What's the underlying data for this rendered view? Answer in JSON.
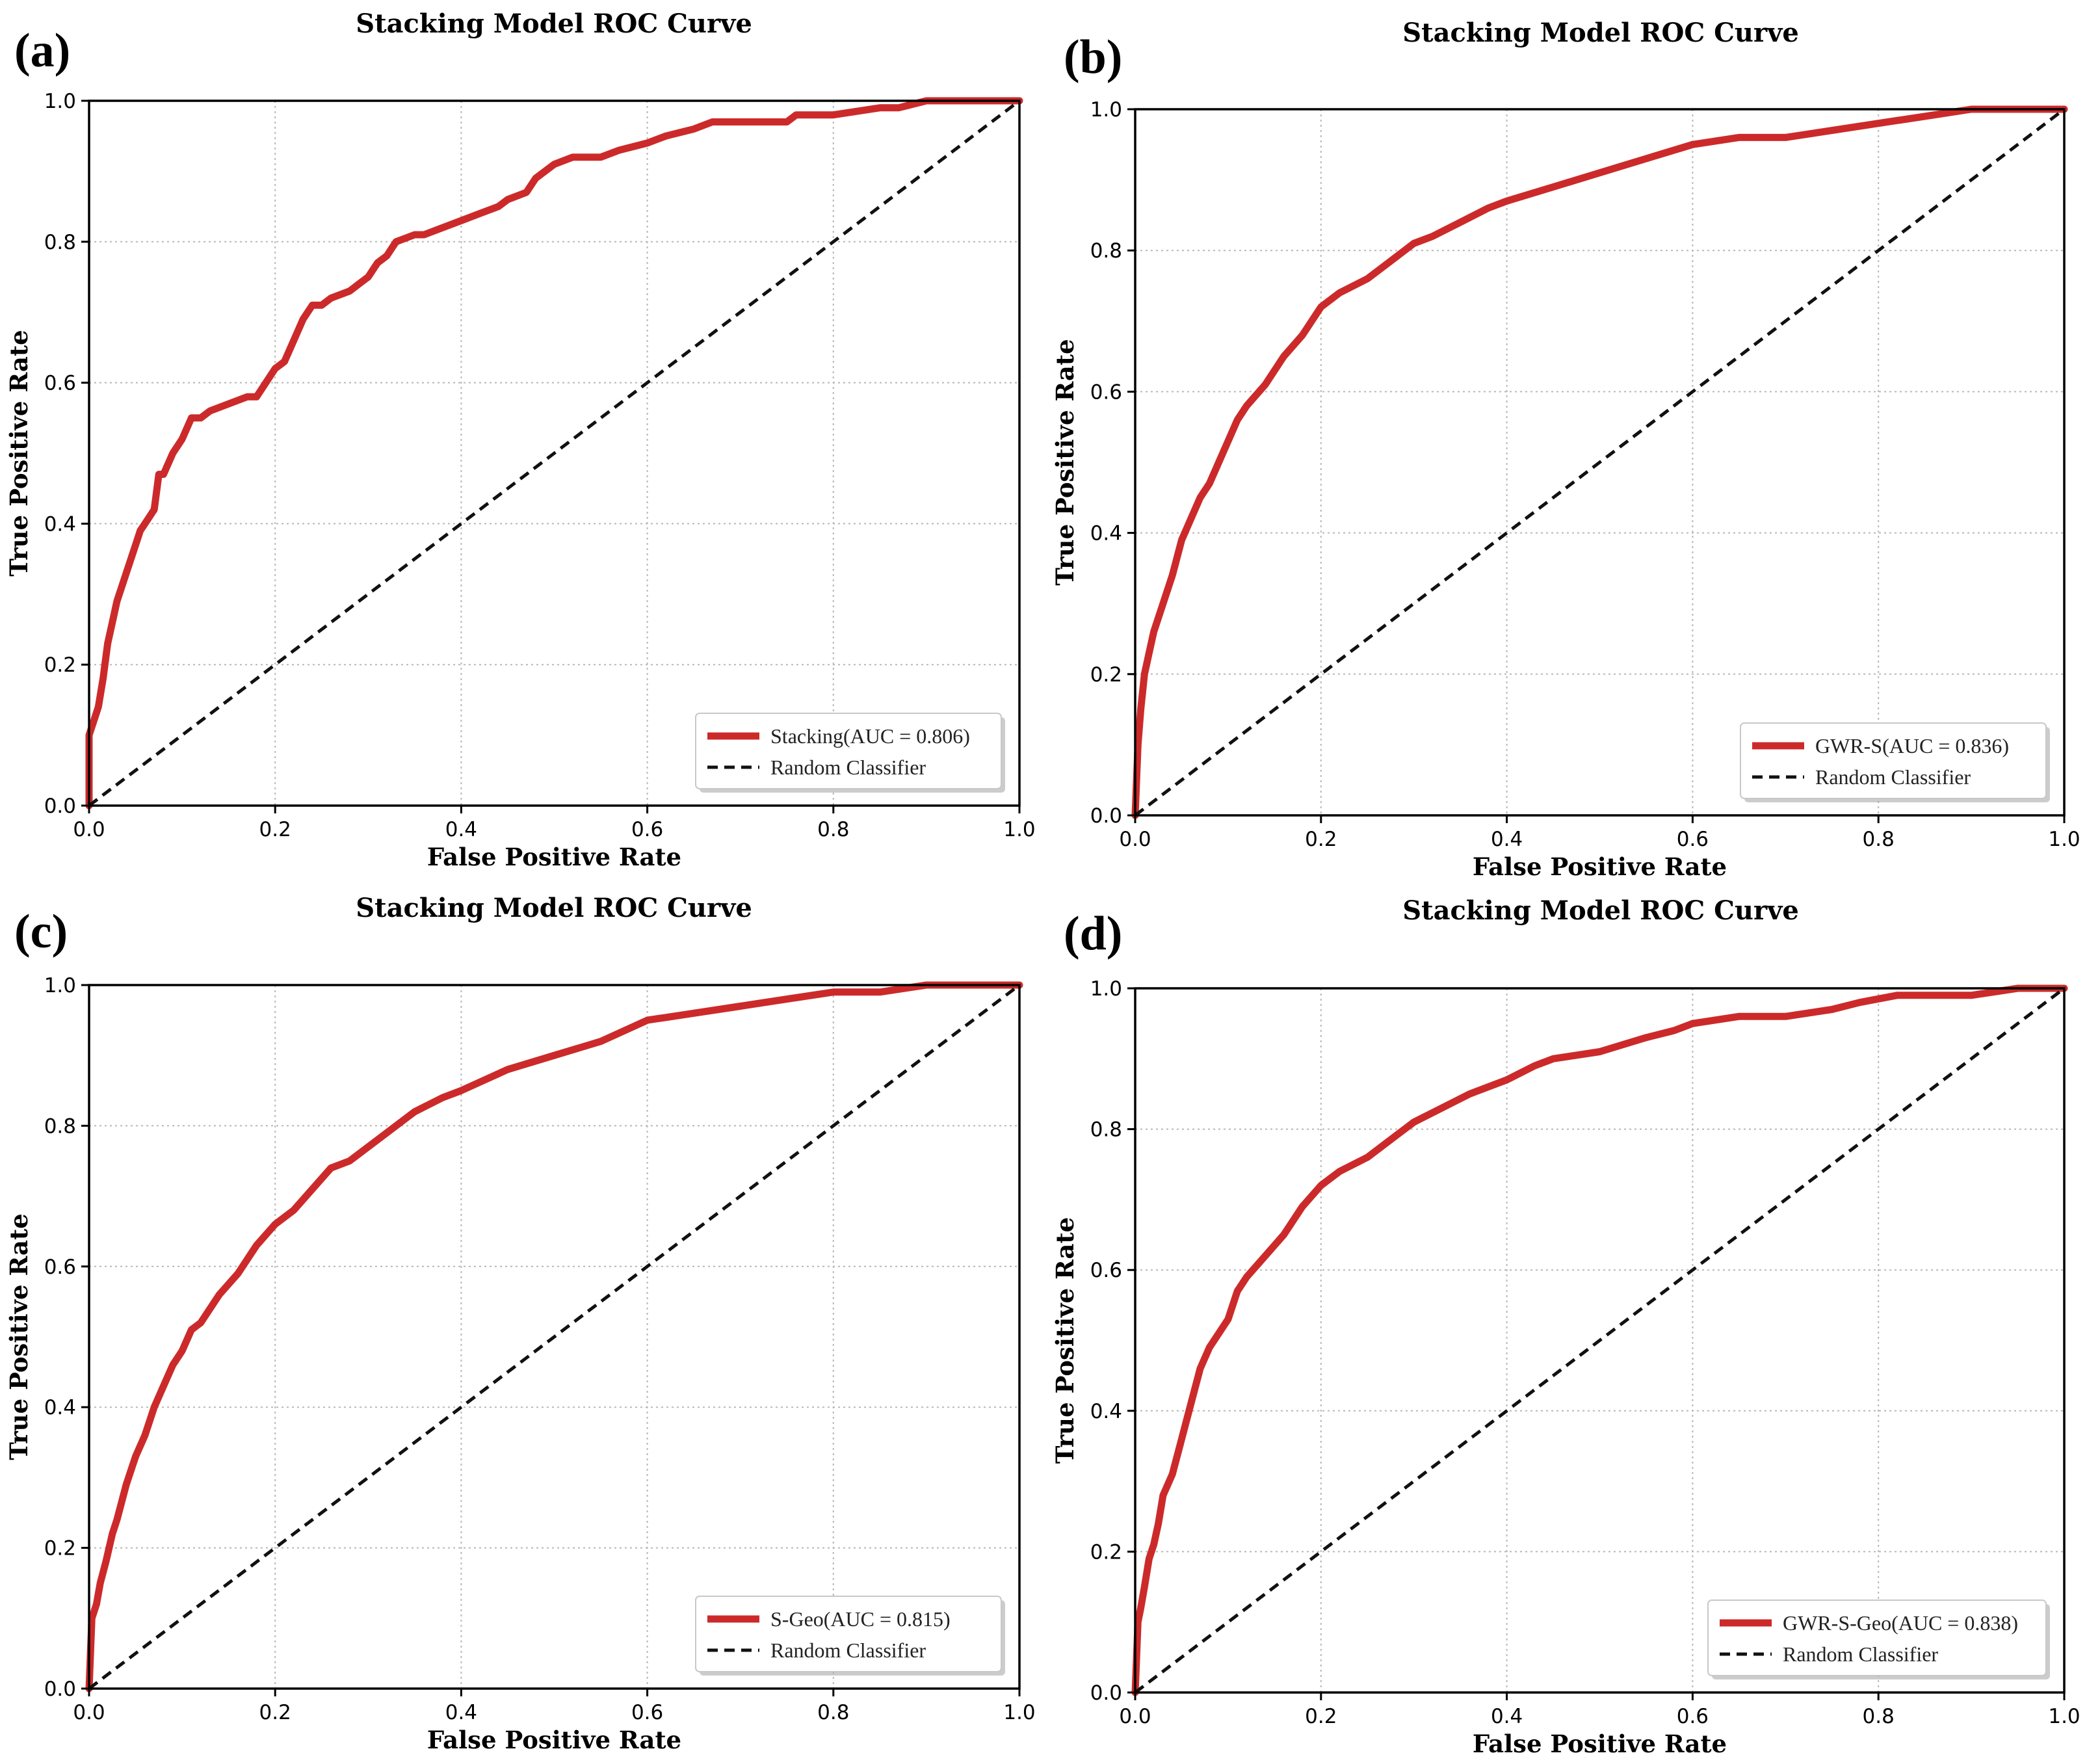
{
  "chart_data": [
    {
      "panel_label": "(a)",
      "type": "line",
      "title": "Stacking Model ROC Curve",
      "xlabel": "False Positive Rate",
      "ylabel": "True Positive Rate",
      "xlim": [
        0,
        1
      ],
      "ylim": [
        0,
        1
      ],
      "grid": true,
      "xticks": [
        "0.0",
        "0.2",
        "0.4",
        "0.6",
        "0.8",
        "1.0"
      ],
      "yticks": [
        "0.0",
        "0.2",
        "0.4",
        "0.6",
        "0.8",
        "1.0"
      ],
      "legend_position": "bottom-right",
      "series": [
        {
          "name": "Stacking(AUC = 0.806)",
          "color": "#cc2a2a",
          "style": "solid",
          "x": [
            0,
            0,
            0.005,
            0.01,
            0.015,
            0.02,
            0.025,
            0.03,
            0.04,
            0.05,
            0.055,
            0.06,
            0.07,
            0.075,
            0.08,
            0.09,
            0.1,
            0.11,
            0.12,
            0.13,
            0.15,
            0.17,
            0.18,
            0.19,
            0.2,
            0.21,
            0.22,
            0.23,
            0.24,
            0.25,
            0.26,
            0.28,
            0.29,
            0.3,
            0.31,
            0.32,
            0.33,
            0.35,
            0.36,
            0.38,
            0.4,
            0.42,
            0.44,
            0.45,
            0.47,
            0.48,
            0.5,
            0.52,
            0.55,
            0.57,
            0.6,
            0.62,
            0.65,
            0.67,
            0.7,
            0.75,
            0.76,
            0.8,
            0.85,
            0.87,
            0.9,
            0.95,
            1.0
          ],
          "y": [
            0,
            0.1,
            0.12,
            0.14,
            0.18,
            0.23,
            0.26,
            0.29,
            0.33,
            0.37,
            0.39,
            0.4,
            0.42,
            0.47,
            0.47,
            0.5,
            0.52,
            0.55,
            0.55,
            0.56,
            0.57,
            0.58,
            0.58,
            0.6,
            0.62,
            0.63,
            0.66,
            0.69,
            0.71,
            0.71,
            0.72,
            0.73,
            0.74,
            0.75,
            0.77,
            0.78,
            0.8,
            0.81,
            0.81,
            0.82,
            0.83,
            0.84,
            0.85,
            0.86,
            0.87,
            0.89,
            0.91,
            0.92,
            0.92,
            0.93,
            0.94,
            0.95,
            0.96,
            0.97,
            0.97,
            0.97,
            0.98,
            0.98,
            0.99,
            0.99,
            1.0,
            1.0,
            1.0
          ]
        },
        {
          "name": "Random Classifier",
          "color": "#111111",
          "style": "dashed",
          "x": [
            0,
            1
          ],
          "y": [
            0,
            1
          ]
        }
      ]
    },
    {
      "panel_label": "(b)",
      "type": "line",
      "title": "Stacking Model ROC Curve",
      "xlabel": "False Positive Rate",
      "ylabel": "True Positive Rate",
      "xlim": [
        0,
        1
      ],
      "ylim": [
        0,
        1
      ],
      "grid": true,
      "xticks": [
        "0.0",
        "0.2",
        "0.4",
        "0.6",
        "0.8",
        "1.0"
      ],
      "yticks": [
        "0.0",
        "0.2",
        "0.4",
        "0.6",
        "0.8",
        "1.0"
      ],
      "legend_position": "bottom-right",
      "series": [
        {
          "name": "GWR-S(AUC = 0.836)",
          "color": "#cc2a2a",
          "style": "solid",
          "x": [
            0,
            0.003,
            0.006,
            0.01,
            0.015,
            0.02,
            0.03,
            0.04,
            0.05,
            0.06,
            0.07,
            0.08,
            0.09,
            0.1,
            0.11,
            0.12,
            0.14,
            0.16,
            0.18,
            0.2,
            0.22,
            0.25,
            0.28,
            0.3,
            0.32,
            0.35,
            0.38,
            0.4,
            0.45,
            0.5,
            0.55,
            0.6,
            0.65,
            0.7,
            0.75,
            0.8,
            0.85,
            0.9,
            0.95,
            1.0
          ],
          "y": [
            0,
            0.1,
            0.15,
            0.2,
            0.23,
            0.26,
            0.3,
            0.34,
            0.39,
            0.42,
            0.45,
            0.47,
            0.5,
            0.53,
            0.56,
            0.58,
            0.61,
            0.65,
            0.68,
            0.72,
            0.74,
            0.76,
            0.79,
            0.81,
            0.82,
            0.84,
            0.86,
            0.87,
            0.89,
            0.91,
            0.93,
            0.95,
            0.96,
            0.96,
            0.97,
            0.98,
            0.99,
            1.0,
            1.0,
            1.0
          ]
        },
        {
          "name": "Random Classifier",
          "color": "#111111",
          "style": "dashed",
          "x": [
            0,
            1
          ],
          "y": [
            0,
            1
          ]
        }
      ]
    },
    {
      "panel_label": "(c)",
      "type": "line",
      "title": "Stacking Model ROC Curve",
      "xlabel": "False Positive Rate",
      "ylabel": "True Positive Rate",
      "xlim": [
        0,
        1
      ],
      "ylim": [
        0,
        1
      ],
      "grid": true,
      "xticks": [
        "0.0",
        "0.2",
        "0.4",
        "0.6",
        "0.8",
        "1.0"
      ],
      "yticks": [
        "0.0",
        "0.2",
        "0.4",
        "0.6",
        "0.8",
        "1.0"
      ],
      "legend_position": "bottom-right",
      "series": [
        {
          "name": "S-Geo(AUC = 0.815)",
          "color": "#cc2a2a",
          "style": "solid",
          "x": [
            0,
            0.003,
            0.008,
            0.012,
            0.018,
            0.025,
            0.03,
            0.04,
            0.05,
            0.06,
            0.07,
            0.08,
            0.09,
            0.1,
            0.11,
            0.12,
            0.14,
            0.16,
            0.18,
            0.2,
            0.22,
            0.24,
            0.26,
            0.28,
            0.3,
            0.32,
            0.35,
            0.38,
            0.4,
            0.45,
            0.5,
            0.55,
            0.6,
            0.65,
            0.7,
            0.75,
            0.8,
            0.85,
            0.9,
            0.95,
            1.0
          ],
          "y": [
            0,
            0.1,
            0.12,
            0.15,
            0.18,
            0.22,
            0.24,
            0.29,
            0.33,
            0.36,
            0.4,
            0.43,
            0.46,
            0.48,
            0.51,
            0.52,
            0.56,
            0.59,
            0.63,
            0.66,
            0.68,
            0.71,
            0.74,
            0.75,
            0.77,
            0.79,
            0.82,
            0.84,
            0.85,
            0.88,
            0.9,
            0.92,
            0.95,
            0.96,
            0.97,
            0.98,
            0.99,
            0.99,
            1.0,
            1.0,
            1.0
          ]
        },
        {
          "name": "Random Classifier",
          "color": "#111111",
          "style": "dashed",
          "x": [
            0,
            1
          ],
          "y": [
            0,
            1
          ]
        }
      ]
    },
    {
      "panel_label": "(d)",
      "type": "line",
      "title": "Stacking Model ROC Curve",
      "xlabel": "False Positive Rate",
      "ylabel": "True Positive Rate",
      "xlim": [
        0,
        1
      ],
      "ylim": [
        0,
        1
      ],
      "grid": true,
      "xticks": [
        "0.0",
        "0.2",
        "0.4",
        "0.6",
        "0.8",
        "1.0"
      ],
      "yticks": [
        "0.0",
        "0.2",
        "0.4",
        "0.6",
        "0.8",
        "1.0"
      ],
      "legend_position": "bottom-right",
      "series": [
        {
          "name": "GWR-S-Geo(AUC = 0.838)",
          "color": "#cc2a2a",
          "style": "solid",
          "x": [
            0,
            0.003,
            0.006,
            0.01,
            0.015,
            0.02,
            0.025,
            0.03,
            0.04,
            0.05,
            0.06,
            0.07,
            0.08,
            0.09,
            0.1,
            0.11,
            0.12,
            0.14,
            0.16,
            0.18,
            0.2,
            0.22,
            0.25,
            0.28,
            0.3,
            0.33,
            0.36,
            0.38,
            0.4,
            0.43,
            0.45,
            0.5,
            0.55,
            0.58,
            0.6,
            0.65,
            0.7,
            0.75,
            0.78,
            0.82,
            0.86,
            0.9,
            0.95,
            1.0
          ],
          "y": [
            0,
            0.1,
            0.12,
            0.15,
            0.19,
            0.21,
            0.24,
            0.28,
            0.31,
            0.36,
            0.41,
            0.46,
            0.49,
            0.51,
            0.53,
            0.57,
            0.59,
            0.62,
            0.65,
            0.69,
            0.72,
            0.74,
            0.76,
            0.79,
            0.81,
            0.83,
            0.85,
            0.86,
            0.87,
            0.89,
            0.9,
            0.91,
            0.93,
            0.94,
            0.95,
            0.96,
            0.96,
            0.97,
            0.98,
            0.99,
            0.99,
            0.99,
            1.0,
            1.0
          ]
        },
        {
          "name": "Random Classifier",
          "color": "#111111",
          "style": "dashed",
          "x": [
            0,
            1
          ],
          "y": [
            0,
            1
          ]
        }
      ]
    }
  ]
}
